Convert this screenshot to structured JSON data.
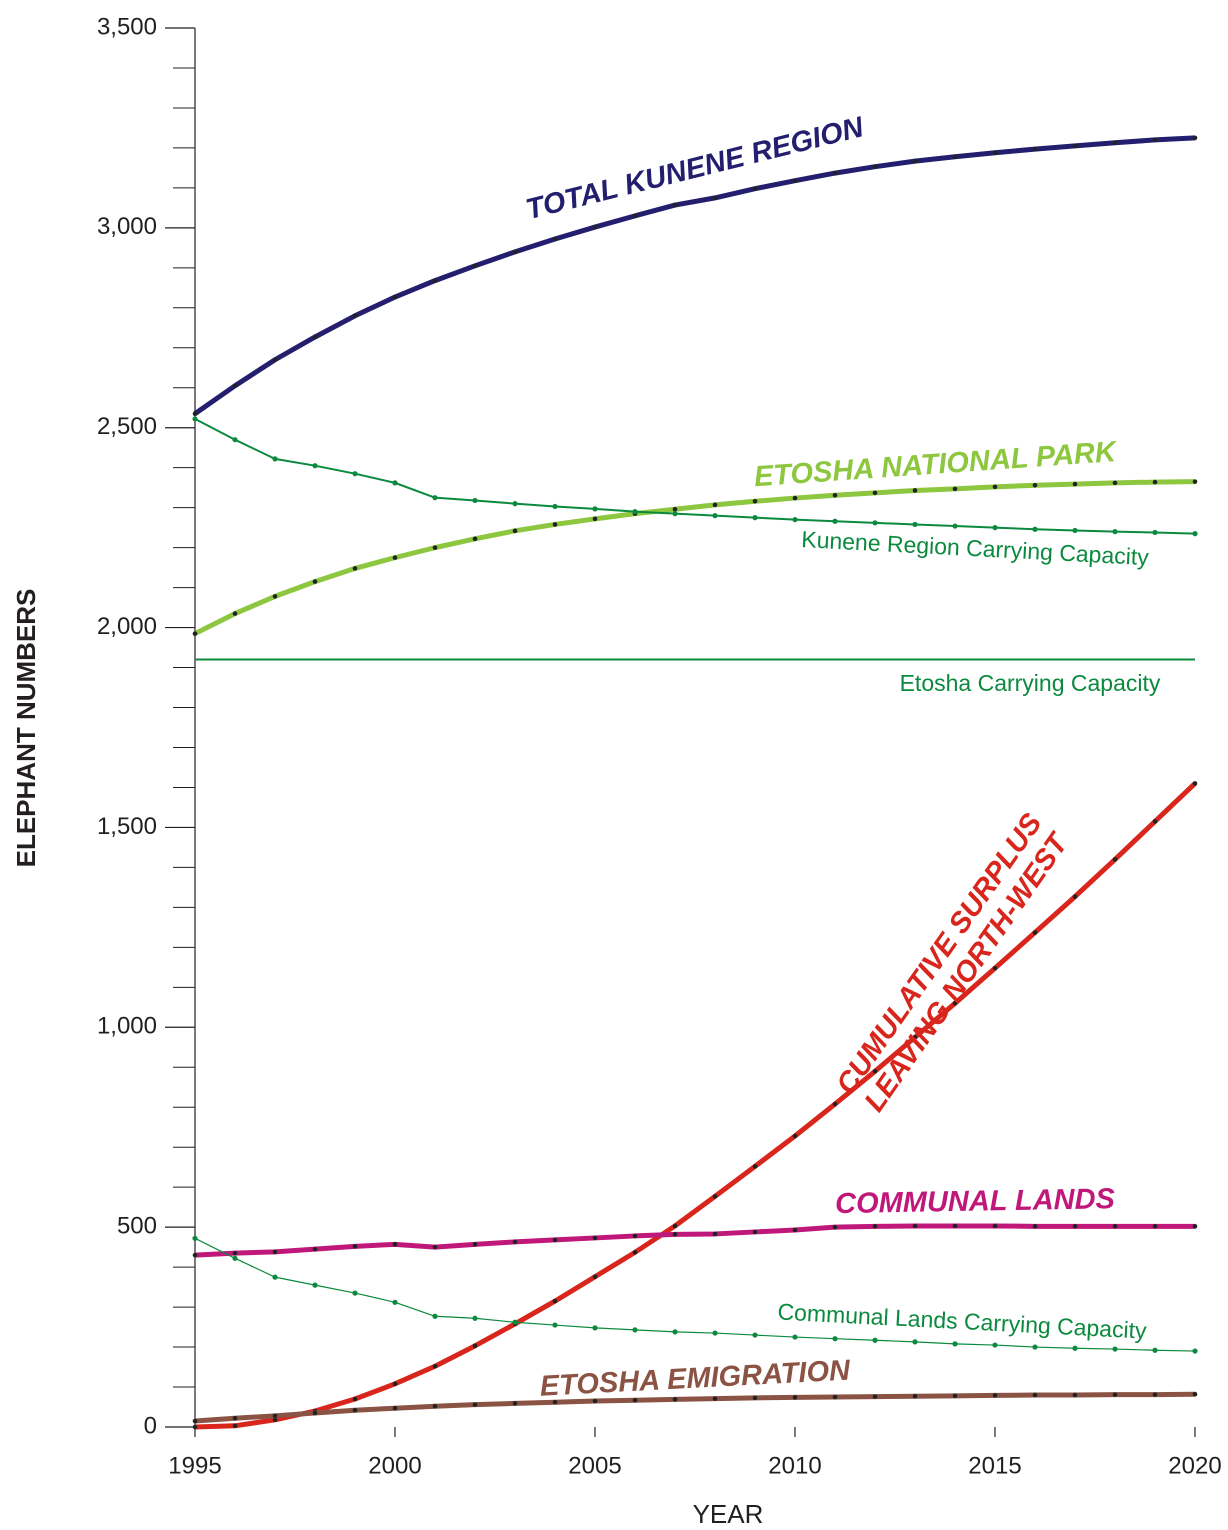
{
  "chart_data": {
    "type": "line",
    "x_label": "YEAR",
    "y_label": "ELEPHANT NUMBERS",
    "x": [
      1995,
      1996,
      1997,
      1998,
      1999,
      2000,
      2001,
      2002,
      2003,
      2004,
      2005,
      2006,
      2007,
      2008,
      2009,
      2010,
      2011,
      2012,
      2013,
      2014,
      2015,
      2016,
      2017,
      2018,
      2019,
      2020
    ],
    "xlim": [
      1995,
      2020
    ],
    "xticks": [
      1995,
      2000,
      2005,
      2010,
      2015,
      2020
    ],
    "ylim": [
      0,
      3500
    ],
    "yticks": [
      0,
      {
        "value": 500,
        "label": "500"
      },
      {
        "value": 1000,
        "label": "1,000"
      },
      {
        "value": 1500,
        "label": "1,500"
      },
      {
        "value": 2000,
        "label": "2,000"
      },
      {
        "value": 2500,
        "label": "2,500"
      },
      {
        "value": 3000,
        "label": "3,000"
      },
      {
        "value": 3500,
        "label": "3,500"
      }
    ],
    "yminorticks": [
      100,
      200,
      300,
      400,
      600,
      700,
      800,
      900,
      1100,
      1200,
      1300,
      1400,
      1600,
      1700,
      1800,
      1900,
      2100,
      2200,
      2300,
      2400,
      2600,
      2700,
      2800,
      2900,
      3100,
      3200,
      3300,
      3400
    ],
    "series": [
      {
        "name": "TOTAL KUNENE REGION",
        "color": "#231f6e",
        "values": [
          2535,
          2605,
          2670,
          2727,
          2780,
          2827,
          2868,
          2905,
          2940,
          2972,
          3002,
          3030,
          3057,
          3075,
          3098,
          3118,
          3137,
          3153,
          3167,
          3178,
          3188,
          3197,
          3205,
          3213,
          3220,
          3225
        ]
      },
      {
        "name": "ETOSHA NATIONAL PARK",
        "color": "#8dc63f",
        "values": [
          1985,
          2035,
          2078,
          2115,
          2148,
          2175,
          2200,
          2222,
          2242,
          2258,
          2272,
          2285,
          2296,
          2307,
          2316,
          2324,
          2331,
          2337,
          2343,
          2347,
          2352,
          2356,
          2359,
          2362,
          2364,
          2365
        ]
      },
      {
        "name": "Kunene Region Carrying Capacity",
        "color": "#0b8a3e",
        "values": [
          2522,
          2470,
          2422,
          2405,
          2385,
          2362,
          2325,
          2318,
          2310,
          2303,
          2297,
          2290,
          2285,
          2280,
          2275,
          2270,
          2266,
          2262,
          2258,
          2254,
          2250,
          2246,
          2243,
          2240,
          2238,
          2235
        ]
      },
      {
        "name": "Etosha Carrying Capacity",
        "color": "#0b8a3e",
        "values": [
          1920,
          1920,
          1920,
          1920,
          1920,
          1920,
          1920,
          1920,
          1920,
          1920,
          1920,
          1920,
          1920,
          1920,
          1920,
          1920,
          1920,
          1920,
          1920,
          1920,
          1920,
          1920,
          1920,
          1920,
          1920,
          1920
        ]
      },
      {
        "name": "CUMULATIVE SURPLUS LEAVING NORTH-WEST",
        "color": "#d9261c",
        "values": [
          0,
          3,
          18,
          40,
          70,
          108,
          152,
          203,
          258,
          315,
          376,
          437,
          503,
          577,
          652,
          728,
          808,
          890,
          975,
          1060,
          1148,
          1237,
          1327,
          1420,
          1515,
          1610
        ]
      },
      {
        "name": "COMMUNAL LANDS",
        "color": "#c0177a",
        "values": [
          430,
          435,
          438,
          445,
          452,
          457,
          450,
          457,
          463,
          468,
          473,
          478,
          482,
          483,
          488,
          493,
          500,
          502,
          503,
          503,
          503,
          502,
          502,
          502,
          502,
          502
        ]
      },
      {
        "name": "Communal Lands Carrying Capacity",
        "color": "#0b8a3e",
        "values": [
          472,
          422,
          375,
          355,
          335,
          312,
          277,
          272,
          262,
          255,
          248,
          243,
          238,
          235,
          230,
          225,
          221,
          217,
          213,
          208,
          205,
          200,
          197,
          195,
          192,
          190
        ]
      },
      {
        "name": "ETOSHA EMIGRATION",
        "color": "#8b5344",
        "values": [
          15,
          22,
          28,
          35,
          42,
          47,
          52,
          56,
          59,
          62,
          65,
          67,
          69,
          71,
          73,
          74,
          75,
          76,
          77,
          78,
          79,
          80,
          80,
          81,
          81,
          82
        ]
      }
    ]
  }
}
